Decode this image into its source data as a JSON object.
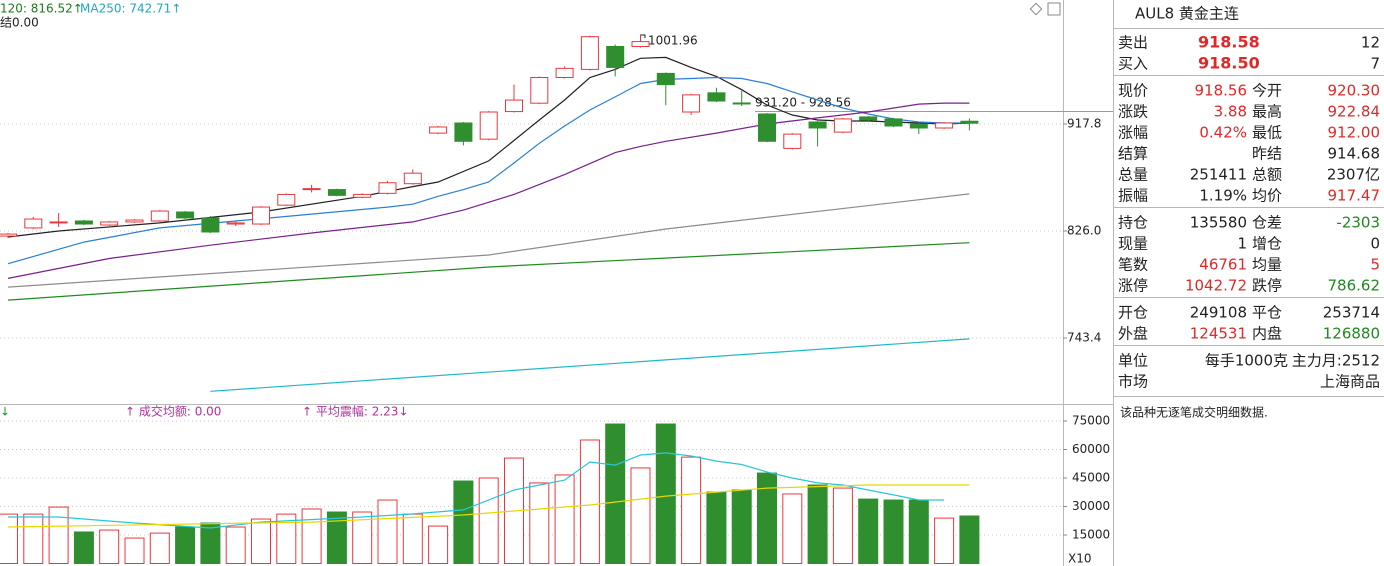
{
  "chart": {
    "header": [
      "120: 816.52↑",
      "MA250: 742.71↑",
      "结0.00"
    ],
    "price": {
      "scale": "log",
      "ylim": [
        697.3,
        1037
      ],
      "yticks": [
        917.8,
        {
          "value": 826,
          "label": "826.0"
        },
        743.4
      ],
      "grid": true,
      "up_color": "#e8383d",
      "down_color": "#2f8f2f",
      "open": [
        821.9,
        828.5,
        832.6,
        834.2,
        830.9,
        833.4,
        834.2,
        841.6,
        836.7,
        831.7,
        831.7,
        847.3,
        860.4,
        860.4,
        853.9,
        857.2,
        865.4,
        909.6,
        918.7,
        904.2,
        929.1,
        936.8,
        960.8,
        968.5,
        990.6,
        990.6,
        964.7,
        928.7,
        946.4,
        937.0,
        926.9,
        896.0,
        919.6,
        910.5,
        924.2,
        922.4,
        917.8,
        914.2,
        920.3
      ],
      "high": [
        824.4,
        837.5,
        840.8,
        835.0,
        834.2,
        835.8,
        843.2,
        842.4,
        838.3,
        834.2,
        846.5,
        857.2,
        864.5,
        861.2,
        857.2,
        867.8,
        877.7,
        916.0,
        919.6,
        929.6,
        954.1,
        961.8,
        971.4,
        1001.1,
        992.5,
        1001.96,
        965.6,
        945.5,
        951.2,
        948.3,
        927.8,
        909.6,
        920.5,
        923.3,
        925.1,
        923.3,
        918.7,
        919.6,
        922.84
      ],
      "low": [
        820.3,
        827.6,
        829.3,
        830.9,
        830.1,
        832.6,
        833.4,
        835.8,
        824.4,
        830.1,
        830.9,
        846.5,
        858.0,
        854.7,
        853.1,
        856.3,
        864.5,
        908.7,
        898.7,
        903.2,
        928.2,
        935.9,
        959.9,
        967.5,
        961.8,
        989.6,
        934.9,
        926.0,
        937.8,
        934.2,
        901.4,
        895.0,
        897.8,
        909.6,
        920.5,
        915.1,
        908.7,
        913.3,
        912.0
      ],
      "close": [
        823.5,
        835.8,
        833.4,
        831.7,
        833.4,
        835.0,
        842.4,
        836.7,
        825.2,
        832.6,
        845.7,
        856.3,
        861.2,
        855.5,
        856.3,
        866.2,
        874.4,
        915.1,
        902.3,
        928.7,
        939.7,
        960.8,
        969.5,
        1000.2,
        970.4,
        995.4,
        954.1,
        944.5,
        938.8,
        936.2,
        902.3,
        908.7,
        914.2,
        922.4,
        921.4,
        916.0,
        914.2,
        918.7,
        918.56
      ],
      "lines": [
        {
          "color": "#222222",
          "x": [
            0,
            2,
            6,
            10,
            14,
            16,
            17,
            19,
            21,
            22,
            23,
            24,
            25,
            26,
            27,
            28,
            29,
            30,
            31,
            32,
            33,
            34,
            35,
            36,
            37,
            38
          ],
          "values": [
            821.1,
            826.0,
            832.6,
            841.6,
            854.7,
            862.9,
            866.8,
            885.0,
            921.4,
            939.7,
            960.8,
            968.5,
            979.1,
            980.0,
            970.4,
            961.8,
            949.3,
            935.1,
            926.0,
            921.4,
            920.5,
            920.5,
            919.6,
            918.7,
            917.8,
            918.7
          ]
        },
        {
          "color": "#2a7fd4",
          "x": [
            0,
            3,
            6,
            9,
            12,
            15,
            16,
            17,
            18,
            19,
            20,
            21,
            22,
            23,
            24,
            25,
            26,
            27,
            28,
            29,
            30,
            31,
            32,
            33,
            34,
            35,
            36,
            37,
            38
          ],
          "values": [
            799.8,
            817.0,
            828.5,
            834.2,
            839.9,
            845.7,
            848.1,
            854.7,
            860.4,
            866.8,
            883.2,
            900.5,
            916.0,
            930.5,
            942.6,
            955.1,
            959.0,
            959.9,
            960.8,
            959.9,
            955.1,
            947.4,
            939.7,
            932.4,
            926.9,
            922.4,
            919.6,
            918.7,
            918.7
          ]
        },
        {
          "color": "#7a1f8c",
          "x": [
            0,
            4,
            8,
            12,
            16,
            18,
            20,
            22,
            24,
            25,
            26,
            28,
            30,
            32,
            34,
            36,
            37,
            38
          ],
          "values": [
            788.3,
            803.9,
            814.5,
            824.4,
            833.4,
            843.2,
            856.3,
            873.2,
            892.3,
            897.8,
            902.3,
            909.6,
            917.8,
            923.3,
            928.7,
            936.0,
            936.9,
            936.9
          ]
        },
        {
          "color": "#8c8c8c",
          "x": [
            0,
            19,
            26,
            38
          ],
          "values": [
            781.6,
            806.7,
            827.6,
            856.7
          ]
        },
        {
          "color": "#1e8c1e",
          "x": [
            0,
            19,
            38
          ],
          "values": [
            771.7,
            797.2,
            816.52
          ]
        },
        {
          "color": "#1fb8cc",
          "x": [
            8,
            38
          ],
          "values": [
            705.4,
            742.71
          ]
        }
      ],
      "annotations": [
        "1001.96",
        "931.20 - 928.56"
      ]
    },
    "volume": {
      "header": [
        "↓",
        "↑ 成交均额: 0.00",
        "↑ 平均震幅: 2.23↓"
      ],
      "ylim": [
        0,
        83000
      ],
      "yticks": [
        15000,
        30000,
        45000,
        60000,
        75000
      ],
      "grid": true,
      "values": [
        26000,
        26000,
        29700,
        16600,
        17600,
        13400,
        16000,
        19200,
        21300,
        19200,
        23400,
        26000,
        28700,
        27100,
        27100,
        33400,
        26000,
        19700,
        43400,
        45000,
        55500,
        42400,
        46600,
        65000,
        73400,
        50300,
        73400,
        56000,
        37600,
        38700,
        47600,
        36600,
        41300,
        39700,
        33900,
        33400,
        33400,
        23900,
        25000
      ],
      "lines": [
        {
          "color": "#29c6d6",
          "x": [
            0,
            2,
            5,
            8,
            10,
            14,
            16,
            18,
            20,
            22,
            23,
            24,
            25,
            26,
            27,
            28,
            29,
            30,
            31,
            32,
            33,
            34,
            35,
            36,
            37
          ],
          "values": [
            24500,
            24500,
            21300,
            18700,
            21800,
            24500,
            26100,
            28200,
            38700,
            43900,
            53400,
            51800,
            57100,
            58200,
            56600,
            53900,
            52100,
            48200,
            45000,
            42400,
            41300,
            38700,
            36100,
            33400,
            33400
          ]
        },
        {
          "color": "#e6d800",
          "x": [
            0,
            12,
            18,
            23,
            26,
            28,
            30,
            34,
            38
          ],
          "values": [
            19200,
            21800,
            25500,
            30800,
            35500,
            37600,
            39700,
            41300,
            41300
          ]
        }
      ],
      "unit": "X10"
    }
  },
  "quote": {
    "title": "AUL8 黄金主连",
    "orderbook": [
      [
        "卖出",
        "918.58",
        "12"
      ],
      [
        "买入",
        "918.50",
        "7"
      ]
    ],
    "stats": [
      [
        "现价",
        "918.56",
        "今开",
        "920.30"
      ],
      [
        "涨跌",
        "3.88",
        "最高",
        "922.84"
      ],
      [
        "涨幅",
        "0.42%",
        "最低",
        "912.00"
      ],
      [
        "结算",
        "昨结",
        "914.68"
      ],
      [
        "总量",
        "251411",
        "总额",
        "2307亿"
      ],
      [
        "振幅",
        "1.19%",
        "均价",
        "917.47"
      ]
    ],
    "position": [
      [
        "持仓",
        "135580",
        "仓差",
        "-2303"
      ],
      [
        "现量",
        "1",
        "增仓",
        "0"
      ],
      [
        "笔数",
        "46761",
        "均量",
        "5"
      ],
      [
        "涨停",
        "1042.72",
        "跌停",
        "786.62"
      ]
    ],
    "flow": [
      [
        "开仓",
        "249108",
        "平仓",
        "253714"
      ],
      [
        "外盘",
        "124531",
        "内盘",
        "126880"
      ]
    ],
    "info": [
      [
        "单位",
        "每手1000克",
        "主力月:2512"
      ],
      [
        "市场",
        "上海商品"
      ]
    ],
    "note": "该品种无逐笔成交明细数据."
  }
}
